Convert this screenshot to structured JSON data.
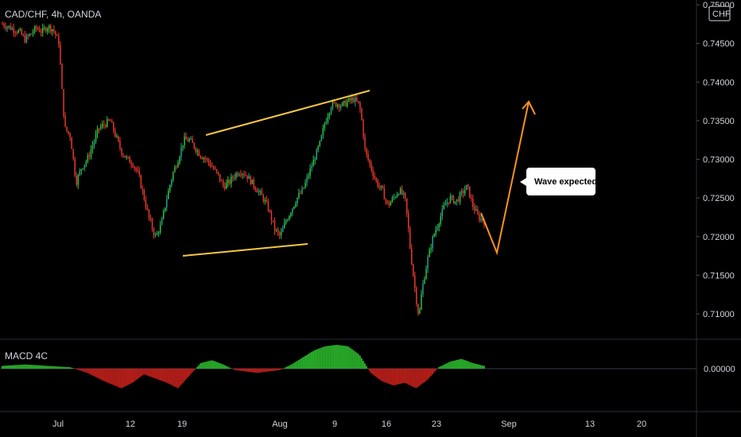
{
  "header": {
    "title": "CAD/CHF, 4h, OANDA",
    "currency_badge": "CHF"
  },
  "colors": {
    "background": "#000000",
    "up_candle": "#26a69a",
    "up_candle_alt": "#2ecc40",
    "down_candle": "#ef3b2c",
    "wedge_line": "#f5c842",
    "projection": "#f7931a",
    "macd_positive": "#2bb52b",
    "macd_negative": "#c0201a",
    "axis_text": "#d1d4dc",
    "grid_separator": "#2a2e39"
  },
  "annotations": {
    "callout": "Wave expected"
  },
  "macd": {
    "label": "MACD 4C",
    "zero_label": "0.00000"
  },
  "chart_data": {
    "type": "candlestick",
    "title": "CAD/CHF, 4h, OANDA",
    "y_axis": {
      "ticks": [
        "0.75000",
        "0.74500",
        "0.74000",
        "0.73500",
        "0.73000",
        "0.72500",
        "0.72000",
        "0.71500",
        "0.71000"
      ],
      "range": [
        0.7085,
        0.7505
      ]
    },
    "x_axis": {
      "ticks": [
        "Jul",
        "12",
        "19",
        "Aug",
        "9",
        "16",
        "23",
        "Sep",
        "13",
        "20"
      ]
    },
    "price_path": [
      [
        0,
        0.7475
      ],
      [
        3,
        0.747
      ],
      [
        6,
        0.7465
      ],
      [
        8,
        0.7455
      ],
      [
        10,
        0.7462
      ],
      [
        12,
        0.747
      ],
      [
        14,
        0.7465
      ],
      [
        16,
        0.7472
      ],
      [
        18,
        0.7468
      ],
      [
        20,
        0.745
      ],
      [
        21,
        0.739
      ],
      [
        22,
        0.734
      ],
      [
        24,
        0.733
      ],
      [
        26,
        0.727
      ],
      [
        28,
        0.729
      ],
      [
        30,
        0.73
      ],
      [
        32,
        0.732
      ],
      [
        34,
        0.734
      ],
      [
        36,
        0.7345
      ],
      [
        38,
        0.735
      ],
      [
        40,
        0.733
      ],
      [
        42,
        0.731
      ],
      [
        44,
        0.73
      ],
      [
        46,
        0.7295
      ],
      [
        48,
        0.728
      ],
      [
        50,
        0.725
      ],
      [
        52,
        0.722
      ],
      [
        54,
        0.72
      ],
      [
        56,
        0.7215
      ],
      [
        58,
        0.725
      ],
      [
        60,
        0.728
      ],
      [
        62,
        0.73
      ],
      [
        64,
        0.7325
      ],
      [
        66,
        0.7325
      ],
      [
        68,
        0.7315
      ],
      [
        70,
        0.7305
      ],
      [
        72,
        0.73
      ],
      [
        74,
        0.729
      ],
      [
        76,
        0.728
      ],
      [
        78,
        0.7265
      ],
      [
        80,
        0.727
      ],
      [
        82,
        0.728
      ],
      [
        84,
        0.7285
      ],
      [
        86,
        0.728
      ],
      [
        88,
        0.727
      ],
      [
        90,
        0.726
      ],
      [
        92,
        0.725
      ],
      [
        94,
        0.7235
      ],
      [
        96,
        0.721
      ],
      [
        98,
        0.72
      ],
      [
        100,
        0.722
      ],
      [
        102,
        0.7235
      ],
      [
        104,
        0.725
      ],
      [
        106,
        0.726
      ],
      [
        108,
        0.728
      ],
      [
        110,
        0.73
      ],
      [
        112,
        0.732
      ],
      [
        114,
        0.735
      ],
      [
        116,
        0.737
      ],
      [
        118,
        0.7372
      ],
      [
        120,
        0.737
      ],
      [
        122,
        0.7375
      ],
      [
        124,
        0.7378
      ],
      [
        126,
        0.737
      ],
      [
        127,
        0.7345
      ],
      [
        128,
        0.731
      ],
      [
        130,
        0.729
      ],
      [
        132,
        0.727
      ],
      [
        134,
        0.726
      ],
      [
        136,
        0.724
      ],
      [
        138,
        0.725
      ],
      [
        140,
        0.726
      ],
      [
        142,
        0.725
      ],
      [
        143,
        0.722
      ],
      [
        144,
        0.718
      ],
      [
        145,
        0.715
      ],
      [
        146,
        0.712
      ],
      [
        147,
        0.7095
      ],
      [
        148,
        0.713
      ],
      [
        150,
        0.717
      ],
      [
        152,
        0.72
      ],
      [
        154,
        0.722
      ],
      [
        156,
        0.724
      ],
      [
        158,
        0.725
      ],
      [
        160,
        0.7245
      ],
      [
        162,
        0.7255
      ],
      [
        164,
        0.7265
      ],
      [
        166,
        0.724
      ],
      [
        168,
        0.7225
      ],
      [
        170,
        0.722
      ]
    ],
    "macd_histogram": [
      [
        0,
        0.0002
      ],
      [
        8,
        0.0003
      ],
      [
        16,
        0.0002
      ],
      [
        24,
        0.0001
      ],
      [
        30,
        -0.0003
      ],
      [
        36,
        -0.0009
      ],
      [
        42,
        -0.0014
      ],
      [
        46,
        -0.001
      ],
      [
        50,
        -0.0004
      ],
      [
        54,
        -0.0007
      ],
      [
        58,
        -0.001
      ],
      [
        62,
        -0.0014
      ],
      [
        66,
        -0.0005
      ],
      [
        70,
        0.0004
      ],
      [
        74,
        0.0006
      ],
      [
        78,
        0.0003
      ],
      [
        82,
        -0.0001
      ],
      [
        86,
        -0.0002
      ],
      [
        90,
        -0.0003
      ],
      [
        94,
        -0.0002
      ],
      [
        98,
        -0.0001
      ],
      [
        102,
        0.0003
      ],
      [
        106,
        0.0008
      ],
      [
        110,
        0.0013
      ],
      [
        114,
        0.0016
      ],
      [
        118,
        0.0017
      ],
      [
        122,
        0.0016
      ],
      [
        126,
        0.001
      ],
      [
        130,
        -0.0003
      ],
      [
        134,
        -0.0009
      ],
      [
        138,
        -0.0012
      ],
      [
        142,
        -0.001
      ],
      [
        146,
        -0.0014
      ],
      [
        150,
        -0.0008
      ],
      [
        154,
        0.0001
      ],
      [
        158,
        0.0005
      ],
      [
        162,
        0.0007
      ],
      [
        166,
        0.0004
      ],
      [
        170,
        0.0002
      ]
    ],
    "wedge": {
      "upper": [
        [
          0.7332,
          0.739
        ]
      ],
      "lower": [
        [
          0.7175,
          0.719
        ]
      ]
    },
    "projection_points": [
      [
        0.722,
        0.718,
        0.7375
      ]
    ]
  }
}
